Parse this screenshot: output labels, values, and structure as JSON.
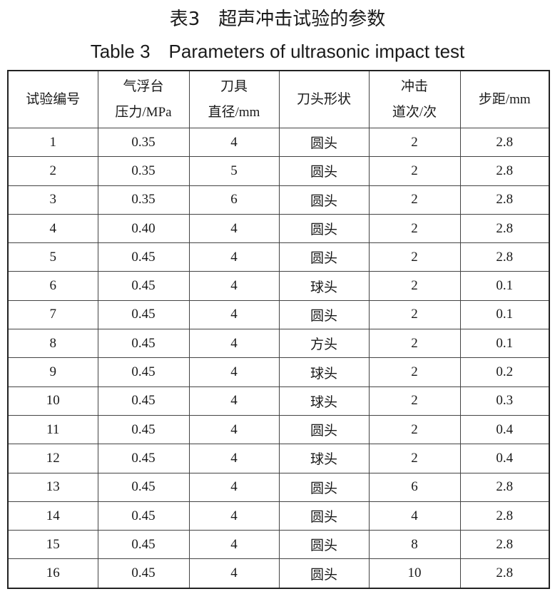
{
  "title_zh": "表3　超声冲击试验的参数",
  "title_en": "Table 3　Parameters of ultrasonic impact test",
  "table": {
    "header": [
      [
        "试验编号"
      ],
      [
        "气浮台",
        "压力/MPa"
      ],
      [
        "刀具",
        "直径/mm"
      ],
      [
        "刀头形状"
      ],
      [
        "冲击",
        "道次/次"
      ],
      [
        "步距/mm"
      ]
    ],
    "rows": [
      [
        "1",
        "0.35",
        "4",
        "圆头",
        "2",
        "2.8"
      ],
      [
        "2",
        "0.35",
        "5",
        "圆头",
        "2",
        "2.8"
      ],
      [
        "3",
        "0.35",
        "6",
        "圆头",
        "2",
        "2.8"
      ],
      [
        "4",
        "0.40",
        "4",
        "圆头",
        "2",
        "2.8"
      ],
      [
        "5",
        "0.45",
        "4",
        "圆头",
        "2",
        "2.8"
      ],
      [
        "6",
        "0.45",
        "4",
        "球头",
        "2",
        "0.1"
      ],
      [
        "7",
        "0.45",
        "4",
        "圆头",
        "2",
        "0.1"
      ],
      [
        "8",
        "0.45",
        "4",
        "方头",
        "2",
        "0.1"
      ],
      [
        "9",
        "0.45",
        "4",
        "球头",
        "2",
        "0.2"
      ],
      [
        "10",
        "0.45",
        "4",
        "球头",
        "2",
        "0.3"
      ],
      [
        "11",
        "0.45",
        "4",
        "圆头",
        "2",
        "0.4"
      ],
      [
        "12",
        "0.45",
        "4",
        "球头",
        "2",
        "0.4"
      ],
      [
        "13",
        "0.45",
        "4",
        "圆头",
        "6",
        "2.8"
      ],
      [
        "14",
        "0.45",
        "4",
        "圆头",
        "4",
        "2.8"
      ],
      [
        "15",
        "0.45",
        "4",
        "圆头",
        "8",
        "2.8"
      ],
      [
        "16",
        "0.45",
        "4",
        "圆头",
        "10",
        "2.8"
      ]
    ]
  }
}
